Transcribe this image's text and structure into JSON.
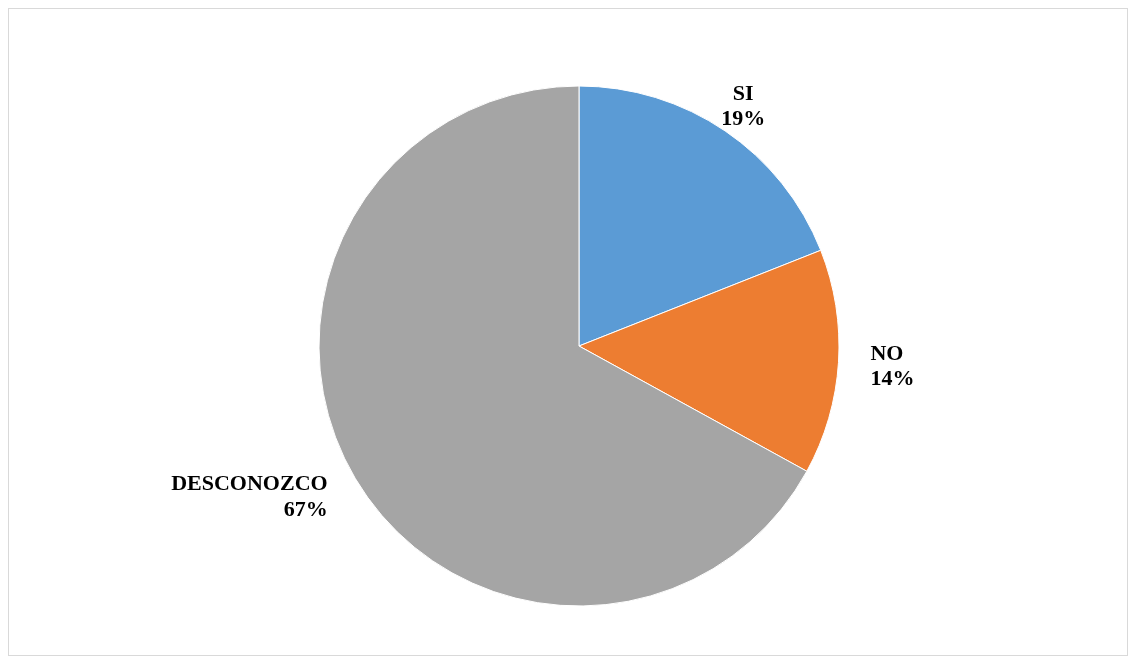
{
  "chart_data": {
    "type": "pie",
    "categories": [
      "SI",
      "NO",
      "DESCONOZCO"
    ],
    "values": [
      19,
      14,
      67
    ],
    "colors": [
      "#5b9bd5",
      "#ed7d31",
      "#a5a5a5"
    ],
    "value_labels": [
      "19%",
      "14%",
      "67%"
    ],
    "legend": false
  }
}
